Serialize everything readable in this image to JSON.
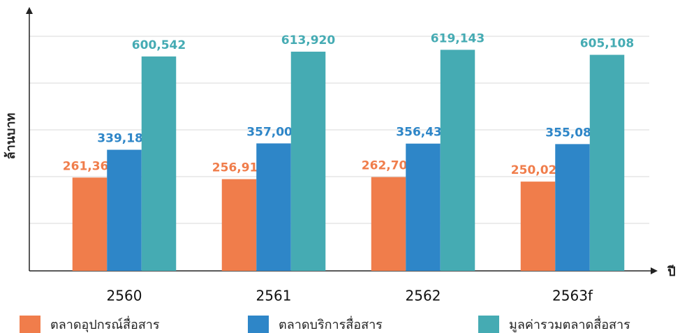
{
  "chart_data": {
    "type": "bar",
    "y_label": "ล้านบาท",
    "x_label": "ปี",
    "categories": [
      "2560",
      "2561",
      "2562",
      "2563f"
    ],
    "ylim": [
      0,
      700000
    ],
    "series": [
      {
        "name": "ตลาดอุปกรณ์สื่อสาร",
        "color": "#f07d4b",
        "values": [
          261360,
          256914,
          262705,
          250021
        ],
        "value_labels": [
          "261,360",
          "256,914",
          "262,705",
          "250,021"
        ]
      },
      {
        "name": "ตลาดบริการสื่อสาร",
        "color": "#2e86c8",
        "values": [
          339182,
          357006,
          356438,
          355087
        ],
        "value_labels": [
          "339,182",
          "357,006",
          "356,438",
          "355,087"
        ]
      },
      {
        "name": "มูลค่ารวมตลาดสื่อสาร",
        "color": "#45abb3",
        "values": [
          600542,
          613920,
          619143,
          605108
        ],
        "value_labels": [
          "600,542",
          "613,920",
          "619,143",
          "605,108"
        ]
      }
    ]
  }
}
